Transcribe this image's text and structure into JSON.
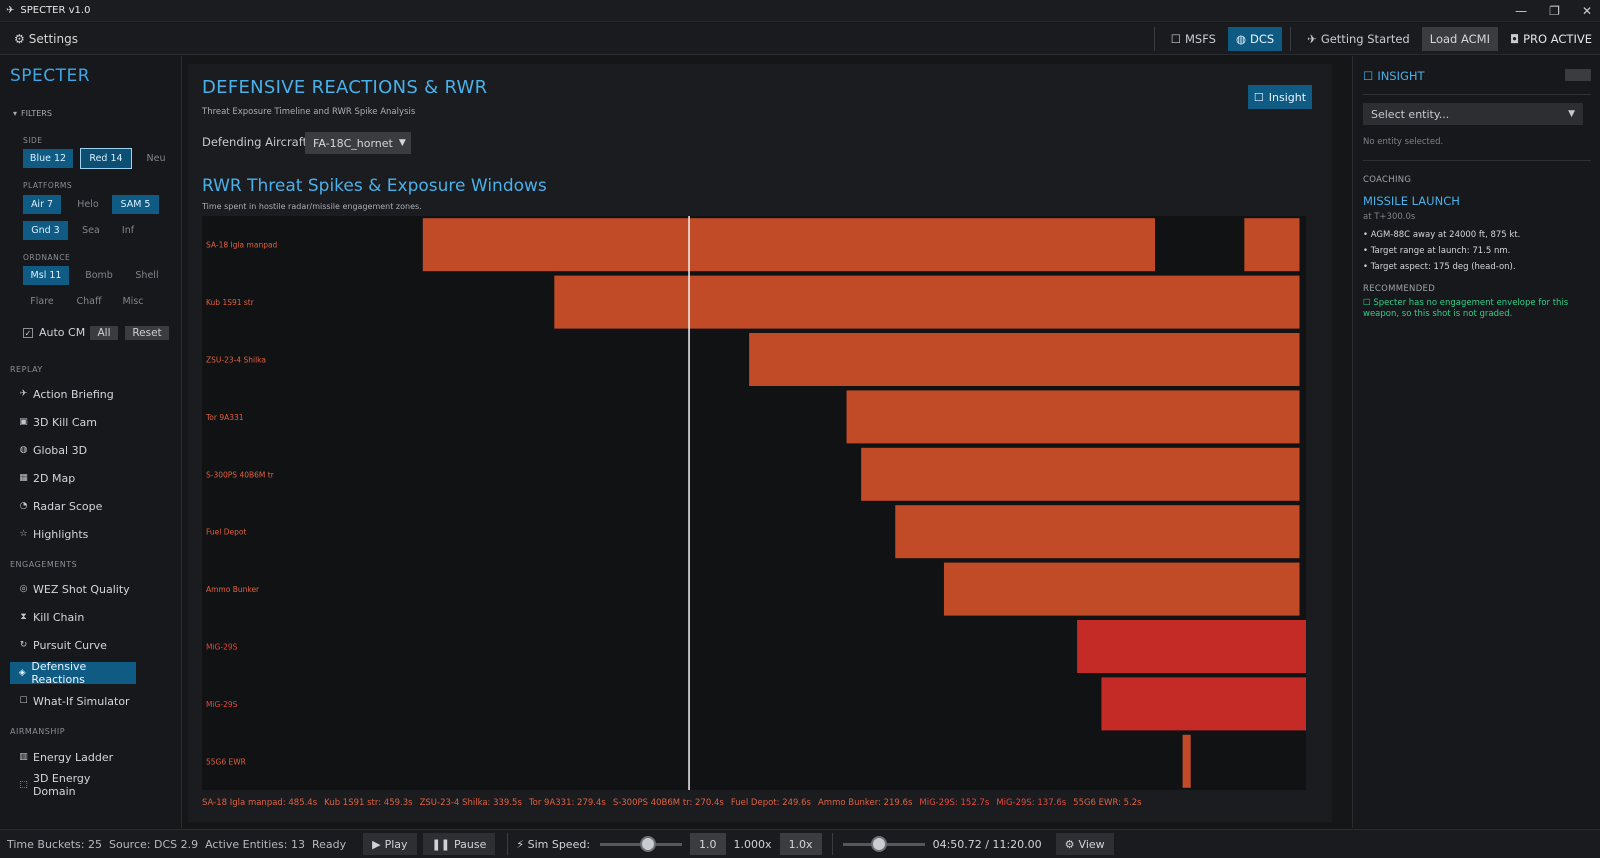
{
  "window": {
    "title": "SPECTER v1.0",
    "controls": [
      "—",
      "❐",
      "✕"
    ]
  },
  "topbar": {
    "settings_label": "Settings",
    "buttons": [
      {
        "label": "MSFS",
        "icon": "square-icon"
      },
      {
        "label": "DCS",
        "icon": "globe-icon"
      },
      {
        "label": "Getting Started",
        "icon": "plane-icon"
      },
      {
        "label": "Load ACMI"
      },
      {
        "label": "PRO ACTIVE",
        "icon": "badge-icon"
      }
    ]
  },
  "sidebar": {
    "brand": "SPECTER",
    "filters_label": "FILTERS",
    "groups": {
      "side": {
        "label": "SIDE",
        "chips": [
          "Blue 12",
          "Red 14",
          "Neu"
        ]
      },
      "platforms": {
        "label": "PLATFORMS",
        "chips": [
          "Air 7",
          "Helo",
          "SAM 5",
          "Gnd 3",
          "Sea",
          "Inf"
        ]
      },
      "ordnance": {
        "label": "ORDNANCE",
        "chips": [
          "Msl 11",
          "Bomb",
          "Shell",
          "Flare",
          "Chaff",
          "Misc"
        ]
      }
    },
    "auto_cm_label": "Auto CM",
    "all_label": "All",
    "reset_label": "Reset",
    "sections": {
      "replay": "REPLAY",
      "engagements": "ENGAGEMENTS",
      "airmanship": "AIRMANSHIP"
    },
    "replay_items": [
      "Action Briefing",
      "3D Kill Cam",
      "Global 3D",
      "2D Map",
      "Radar Scope",
      "Highlights"
    ],
    "engagement_items": [
      "WEZ Shot Quality",
      "Kill Chain",
      "Pursuit Curve",
      "Defensive Reactions",
      "What-If Simulator"
    ],
    "airmanship_items": [
      "Energy Ladder",
      "3D Energy Domain"
    ]
  },
  "main": {
    "title": "DEFENSIVE REACTIONS & RWR",
    "subtitle": "Threat Exposure Timeline and RWR Spike Analysis",
    "insight_button": "Insight",
    "defending_label": "Defending Aircraft:",
    "defending_value": "FA-18C_hornet",
    "chart_title": "RWR Threat Spikes & Exposure Windows",
    "chart_subtitle": "Time spent in hostile radar/missile engagement zones."
  },
  "chart_data": {
    "type": "bar",
    "orientation": "horizontal-timeline",
    "title": "RWR Threat Spikes & Exposure Windows",
    "time_range": [
      0,
      680
    ],
    "cursor_time": 300,
    "categories": [
      "SA-18 Igla manpad",
      "Kub 1S91 str",
      "ZSU-23-4 Shilka",
      "Tor 9A331",
      "S-300PS 40B6M tr",
      "Fuel Depot",
      "Ammo Bunker",
      "MiG-29S",
      "MiG-29S",
      "55G6 EWR"
    ],
    "series": [
      {
        "category": "SA-18 Igla manpad",
        "windows": [
          [
            136,
            587
          ],
          [
            642,
            676
          ]
        ],
        "total_s": 485.4,
        "color": "#c14a27"
      },
      {
        "category": "Kub 1S91 str",
        "windows": [
          [
            217,
            676
          ]
        ],
        "total_s": 459.3,
        "color": "#c14a27"
      },
      {
        "category": "ZSU-23-4 Shilka",
        "windows": [
          [
            337,
            676
          ]
        ],
        "total_s": 339.5,
        "color": "#c14a27"
      },
      {
        "category": "Tor 9A331",
        "windows": [
          [
            397,
            676
          ]
        ],
        "total_s": 279.4,
        "color": "#c14a27"
      },
      {
        "category": "S-300PS 40B6M tr",
        "windows": [
          [
            406,
            676
          ]
        ],
        "total_s": 270.4,
        "color": "#c14a27"
      },
      {
        "category": "Fuel Depot",
        "windows": [
          [
            427,
            676
          ]
        ],
        "total_s": 249.6,
        "color": "#c14a27"
      },
      {
        "category": "Ammo Bunker",
        "windows": [
          [
            457,
            676
          ]
        ],
        "total_s": 219.6,
        "color": "#c14a27"
      },
      {
        "category": "MiG-29S",
        "windows": [
          [
            539,
            691
          ]
        ],
        "total_s": 152.7,
        "color": "#c42a26"
      },
      {
        "category": "MiG-29S",
        "windows": [
          [
            554,
            691
          ]
        ],
        "total_s": 137.6,
        "color": "#c42a26"
      },
      {
        "category": "55G6 EWR",
        "windows": [
          [
            604,
            609
          ]
        ],
        "total_s": 5.2,
        "color": "#c14a27"
      }
    ],
    "legend": [
      {
        "text": "SA-18 Igla manpad: 485.4s",
        "color": "#e06040"
      },
      {
        "text": "Kub 1S91 str: 459.3s",
        "color": "#e06040"
      },
      {
        "text": "ZSU-23-4 Shilka: 339.5s",
        "color": "#e06040"
      },
      {
        "text": "Tor 9A331: 279.4s",
        "color": "#e06040"
      },
      {
        "text": "S-300PS 40B6M tr: 270.4s",
        "color": "#e06040"
      },
      {
        "text": "Fuel Depot: 249.6s",
        "color": "#e06040"
      },
      {
        "text": "Ammo Bunker: 219.6s",
        "color": "#e06040"
      },
      {
        "text": "MiG-29S: 152.7s",
        "color": "#e8473e"
      },
      {
        "text": "MiG-29S: 137.6s",
        "color": "#e8473e"
      },
      {
        "text": "55G6 EWR: 5.2s",
        "color": "#e06040"
      }
    ]
  },
  "right_panel": {
    "title": "INSIGHT",
    "select_placeholder": "Select entity...",
    "no_entity": "No entity selected.",
    "coaching_label": "COACHING",
    "coaching_title": "MISSILE LAUNCH",
    "coaching_time": "at T+300.0s",
    "bullets": [
      "• AGM-88C away at 24000 ft, 875 kt.",
      "• Target range at launch: 71.5 nm.",
      "• Target aspect: 175 deg (head-on)."
    ],
    "recommended_label": "RECOMMENDED",
    "recommended_text": "☐ Specter has no engagement envelope for this weapon, so this shot is not graded."
  },
  "statusbar": {
    "time_buckets": "Time Buckets: 25",
    "source": "Source: DCS 2.9",
    "active_entities": "Active Entities: 13",
    "ready": "Ready",
    "play": "Play",
    "pause": "Pause",
    "sim_speed_label": "Sim Speed:",
    "sim_speed_value": "1.0",
    "sim_speed_readout": "1.000x",
    "speed_box": "1.0x",
    "sim_speed_fraction": 0.6,
    "timeline_fraction": 0.43,
    "time": "04:50.72 / 11:20.00",
    "view": "View"
  }
}
